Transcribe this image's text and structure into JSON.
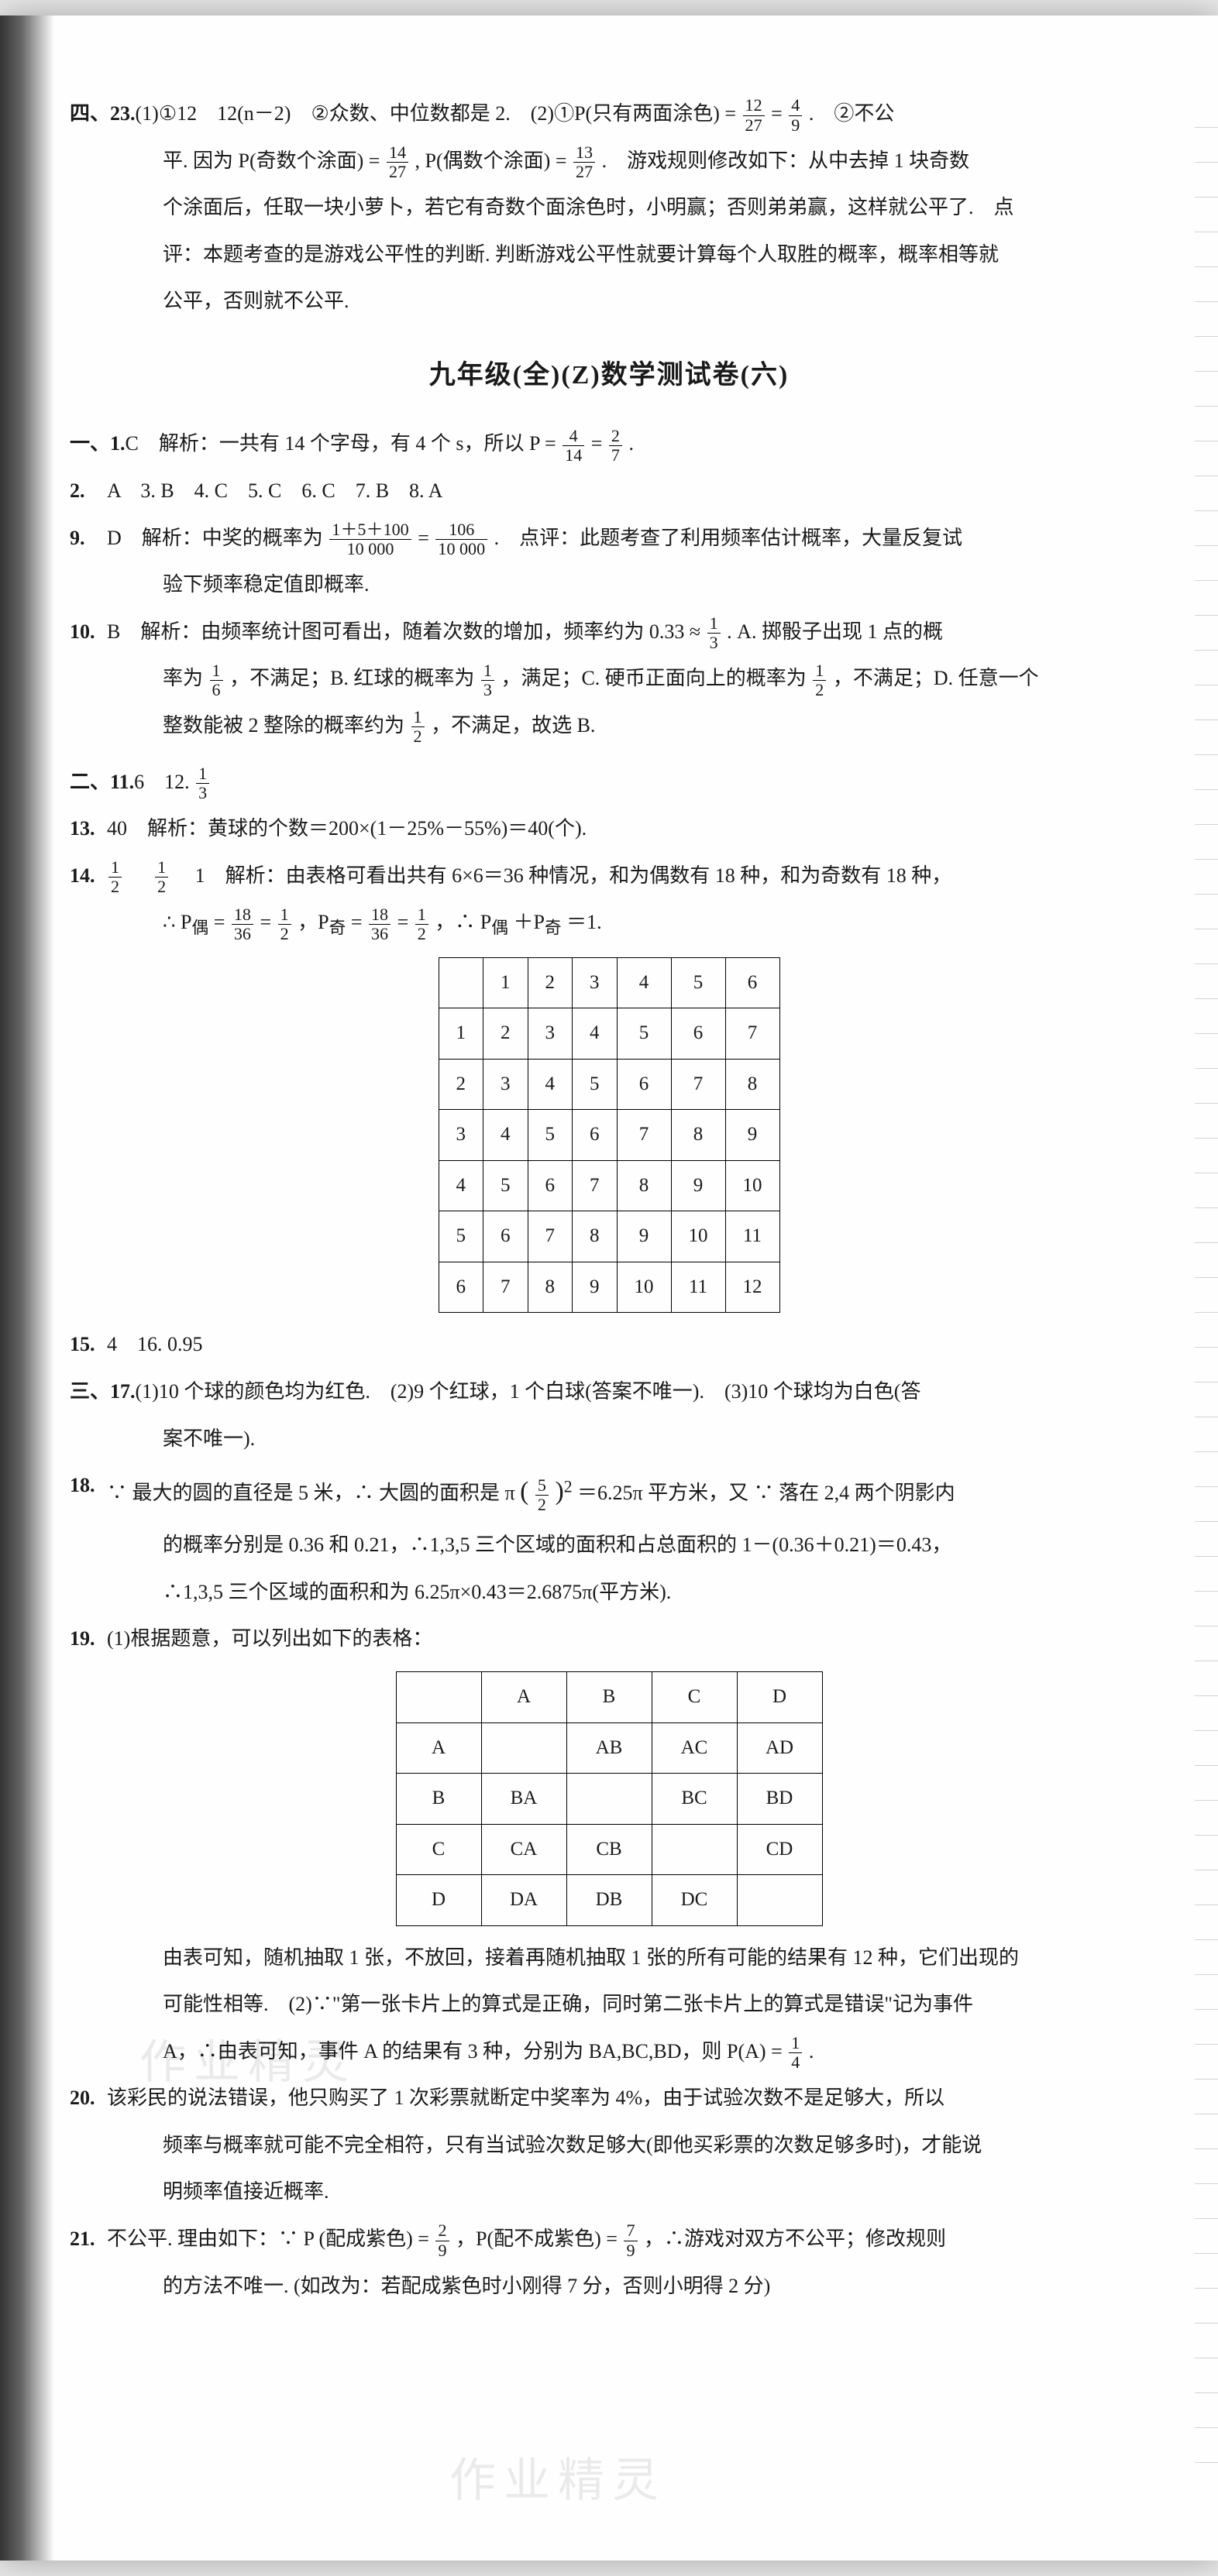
{
  "prev": {
    "sectionLabel": "四、23.",
    "p1a": "(1)①12　12(n－2)　②众数、中位数都是 2.　(2)①P(只有两面涂色) =",
    "f1n": "12",
    "f1d": "27",
    "eq1": " = ",
    "f2n": "4",
    "f2d": "9",
    "p1b": ".　②不公",
    "p2a": "平. 因为 P(奇数个涂面) =",
    "f3n": "14",
    "f3d": "27",
    "p2b": ", P(偶数个涂面) =",
    "f4n": "13",
    "f4d": "27",
    "p2c": ".　游戏规则修改如下：从中去掉 1 块奇数",
    "p3": "个涂面后，任取一块小萝卜，若它有奇数个面涂色时，小明赢；否则弟弟赢，这样就公平了.　点",
    "p4": "评：本题考查的是游戏公平性的判断. 判断游戏公平性就要计算每个人取胜的概率，概率相等就",
    "p5": "公平，否则就不公平."
  },
  "title": "九年级(全)(Z)数学测试卷(六)",
  "s1": {
    "label": "一、1.",
    "q1a": "C　解析：一共有 14 个字母，有 4 个 s，所以 P =",
    "f1n": "4",
    "f1d": "14",
    "eq": " = ",
    "f2n": "2",
    "f2d": "7",
    "q1b": ".",
    "q2": "A　3. B　4. C　5. C　6. C　7. B　8. A",
    "q9a": "D　解析：中奖的概率为 ",
    "f9an": "1＋5＋100",
    "f9ad": "10 000",
    "q9eq": " = ",
    "f9bn": "106",
    "f9bd": "10 000",
    "q9b": ".　点评：此题考查了利用频率估计概率，大量反复试",
    "q9c": "验下频率稳定值即概率.",
    "q10a": "B　解析：由频率统计图可看出，随着次数的增加，频率约为 0.33 ≈ ",
    "f10n": "1",
    "f10d": "3",
    "q10b": ". A. 掷骰子出现 1 点的概",
    "q10c_a": "率为 ",
    "f10cn": "1",
    "f10cd": "6",
    "q10c_b": "，不满足；B. 红球的概率为 ",
    "f10dn": "1",
    "f10dd": "3",
    "q10c_c": "，满足；C. 硬币正面向上的概率为 ",
    "f10en": "1",
    "f10ed": "2",
    "q10c_d": "，不满足；D. 任意一个",
    "q10d_a": "整数能被 2 整除的概率约为 ",
    "f10fn": "1",
    "f10fd": "2",
    "q10d_b": "，不满足，故选 B."
  },
  "s2": {
    "label": "二、11.",
    "q11": "6　12. ",
    "f12n": "1",
    "f12d": "3",
    "q13": "40　解析：黄球的个数＝200×(1－25%－55%)＝40(个).",
    "q14a": "",
    "f14an": "1",
    "f14ad": "2",
    "q14sp": "　",
    "f14bn": "1",
    "f14bd": "2",
    "q14b": "　1　解析：由表格可看出共有 6×6＝36 种情况，和为偶数有 18 种，和为奇数有 18 种，",
    "q14c_a": "∴ P",
    "q14c_sub1": "偶",
    "q14c_b": " = ",
    "f14cn": "18",
    "f14cd": "36",
    "q14c_c": " = ",
    "f14dn": "1",
    "f14dd": "2",
    "q14c_d": "，P",
    "q14c_sub2": "奇",
    "q14c_e": " = ",
    "f14en": "18",
    "f14ed": "36",
    "q14c_f": " = ",
    "f14fn": "1",
    "f14fd": "2",
    "q14c_g": "，∴ P",
    "q14c_sub3": "偶",
    "q14c_h": "＋P",
    "q14c_sub4": "奇",
    "q14c_i": "＝1.",
    "q15": "4　16. 0.95"
  },
  "table1": {
    "header": [
      "",
      "1",
      "2",
      "3",
      "4",
      "5",
      "6"
    ],
    "rows": [
      [
        "1",
        "2",
        "3",
        "4",
        "5",
        "6",
        "7"
      ],
      [
        "2",
        "3",
        "4",
        "5",
        "6",
        "7",
        "8"
      ],
      [
        "3",
        "4",
        "5",
        "6",
        "7",
        "8",
        "9"
      ],
      [
        "4",
        "5",
        "6",
        "7",
        "8",
        "9",
        "10"
      ],
      [
        "5",
        "6",
        "7",
        "8",
        "9",
        "10",
        "11"
      ],
      [
        "6",
        "7",
        "8",
        "9",
        "10",
        "11",
        "12"
      ]
    ]
  },
  "s3": {
    "label": "三、17.",
    "q17a": "(1)10 个球的颜色均为红色.　(2)9 个红球，1 个白球(答案不唯一).　(3)10 个球均为白色(答",
    "q17b": "案不唯一).",
    "q18a_a": "∵ 最大的圆的直径是 5 米，∴ 大圆的面积是 π",
    "q18a_paren_l": "(",
    "f18n": "5",
    "f18d": "2",
    "q18a_paren_r": ")",
    "q18a_exp": "2",
    "q18a_b": "＝6.25π 平方米，又 ∵ 落在 2,4 两个阴影内",
    "q18b": "的概率分别是 0.36 和 0.21，∴1,3,5 三个区域的面积和占总面积的 1－(0.36＋0.21)＝0.43，",
    "q18c": "∴1,3,5 三个区域的面积和为 6.25π×0.43＝2.6875π(平方米).",
    "q19a": "(1)根据题意，可以列出如下的表格：",
    "q19b": "由表可知，随机抽取 1 张，不放回，接着再随机抽取 1 张的所有可能的结果有 12 种，它们出现的",
    "q19c": "可能性相等.　(2)∵\"第一张卡片上的算式是正确，同时第二张卡片上的算式是错误\"记为事件",
    "q19d_a": "A，∴由表可知，事件 A 的结果有 3 种，分别为 BA,BC,BD，则 P(A) = ",
    "f19n": "1",
    "f19d": "4",
    "q19d_b": ".",
    "q20a": "该彩民的说法错误，他只购买了 1 次彩票就断定中奖率为 4%，由于试验次数不是足够大，所以",
    "q20b": "频率与概率就可能不完全相符，只有当试验次数足够大(即他买彩票的次数足够多时)，才能说",
    "q20c": "明频率值接近概率.",
    "q21a_a": "不公平. 理由如下：∵ P (配成紫色) = ",
    "f21an": "2",
    "f21ad": "9",
    "q21a_b": "，P(配不成紫色) = ",
    "f21bn": "7",
    "f21bd": "9",
    "q21a_c": "，∴游戏对双方不公平；修改规则",
    "q21b": "的方法不唯一. (如改为：若配成紫色时小刚得 7 分，否则小明得 2 分)"
  },
  "table2": {
    "header": [
      "",
      "A",
      "B",
      "C",
      "D"
    ],
    "rows": [
      [
        "A",
        "",
        "AB",
        "AC",
        "AD"
      ],
      [
        "B",
        "BA",
        "",
        "BC",
        "BD"
      ],
      [
        "C",
        "CA",
        "CB",
        "",
        "CD"
      ],
      [
        "D",
        "DA",
        "DB",
        "DC",
        ""
      ]
    ]
  },
  "watermark": "作业精灵"
}
